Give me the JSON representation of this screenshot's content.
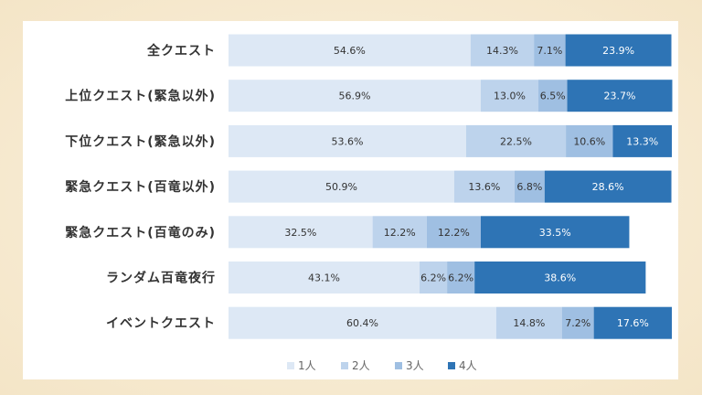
{
  "chart_data": {
    "type": "bar",
    "orientation": "horizontal",
    "stacked": "percent",
    "categories": [
      "全クエスト",
      "上位クエスト(緊急以外)",
      "下位クエスト(緊急以外)",
      "緊急クエスト(百竜以外)",
      "緊急クエスト(百竜のみ)",
      "ランダム百竜夜行",
      "イベントクエスト"
    ],
    "series": [
      {
        "name": "1人",
        "values": [
          54.6,
          56.9,
          53.6,
          50.9,
          32.5,
          43.1,
          60.4
        ],
        "labels": [
          "54.6%",
          "56.9%",
          "53.6%",
          "50.9%",
          "32.5%",
          "43.1%",
          "60.4%"
        ],
        "color": "#dde8f5"
      },
      {
        "name": "2人",
        "values": [
          14.3,
          13.0,
          22.5,
          13.6,
          12.2,
          6.2,
          14.8
        ],
        "labels": [
          "14.3%",
          "13.0%",
          "22.5%",
          "13.6%",
          "12.2%",
          "6.2%",
          "14.8%"
        ],
        "color": "#bdd3ec"
      },
      {
        "name": "3人",
        "values": [
          7.1,
          6.5,
          10.6,
          6.8,
          12.2,
          6.2,
          7.2
        ],
        "labels": [
          "7.1%",
          "6.5%",
          "10.6%",
          "6.8%",
          "12.2%",
          "6.2%",
          "7.2%"
        ],
        "color": "#9fbfe2"
      },
      {
        "name": "4人",
        "values": [
          23.9,
          23.7,
          13.3,
          28.6,
          33.5,
          38.6,
          17.6
        ],
        "labels": [
          "23.9%",
          "23.7%",
          "13.3%",
          "28.6%",
          "33.5%",
          "38.6%",
          "17.6%"
        ],
        "color": "#2e74b5"
      }
    ],
    "xlim": [
      0,
      100
    ],
    "grid": false,
    "legend_position": "bottom"
  }
}
